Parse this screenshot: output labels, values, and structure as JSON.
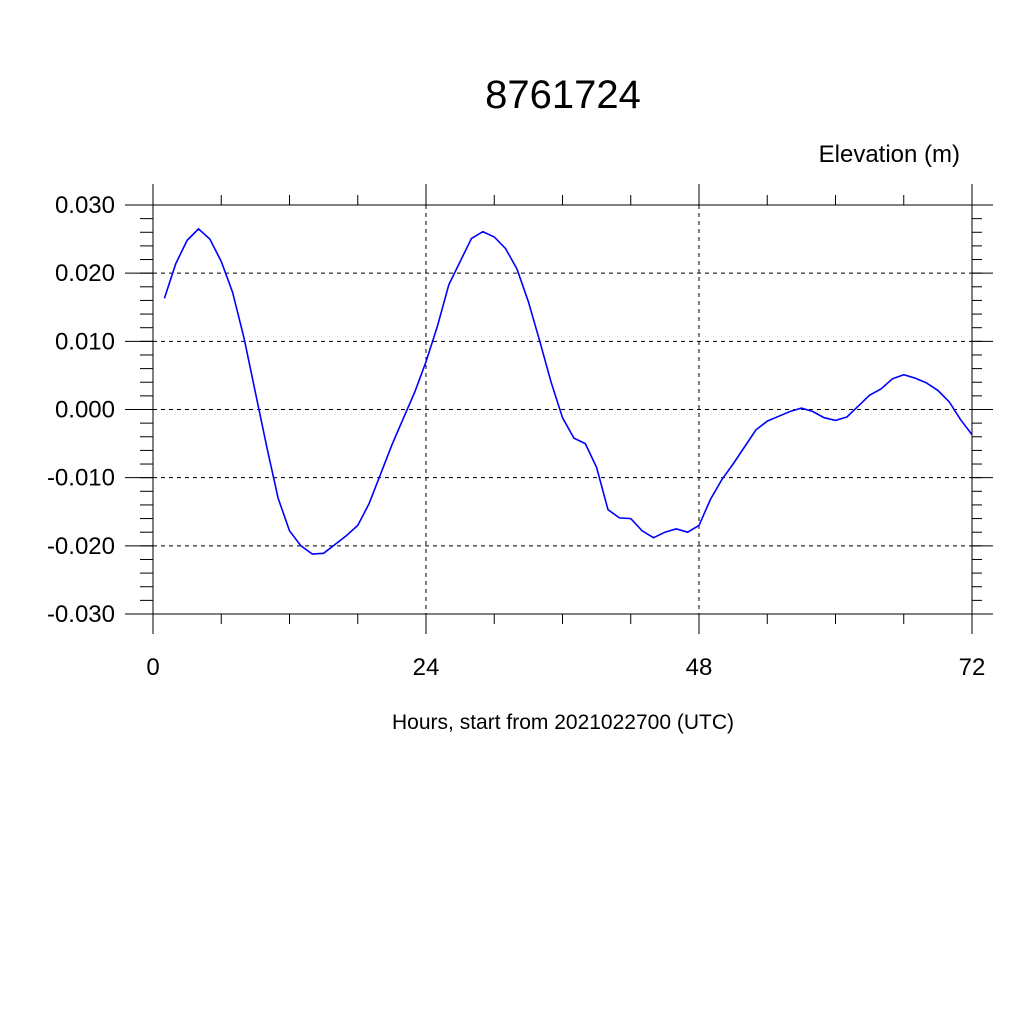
{
  "chart_data": {
    "type": "line",
    "title": "8761724",
    "ylabel": "Elevation (m)",
    "xlabel": "Hours, start from 2021022700 (UTC)",
    "xlim": [
      0,
      72
    ],
    "ylim": [
      -0.03,
      0.03
    ],
    "x_ticks": [
      "0",
      "24",
      "48",
      "72"
    ],
    "x_tick_values": [
      0,
      24,
      48,
      72
    ],
    "y_ticks": [
      "0.030",
      "0.020",
      "0.010",
      "0.000",
      "-0.010",
      "-0.020",
      "-0.030"
    ],
    "y_tick_values": [
      0.03,
      0.02,
      0.01,
      0.0,
      -0.01,
      -0.02,
      -0.03
    ],
    "grid": true,
    "series_color": "#0000ff",
    "series": [
      {
        "x": [
          1,
          2,
          3,
          4,
          5,
          6,
          7,
          8,
          9,
          10,
          11,
          12,
          13,
          14,
          15,
          16,
          17,
          18,
          19,
          20,
          21,
          22,
          23,
          24,
          25,
          26,
          27,
          28,
          29,
          30,
          31,
          32,
          33,
          34,
          35,
          36,
          37,
          38,
          39,
          40,
          41,
          42,
          43,
          44,
          45,
          46,
          47,
          48,
          49,
          50,
          51,
          52,
          53,
          54,
          55,
          56,
          57,
          58,
          59,
          60,
          61,
          62,
          63,
          64,
          65,
          66,
          67,
          68,
          69,
          70,
          71,
          72
        ],
        "y": [
          0.0163,
          0.0214,
          0.0248,
          0.0265,
          0.025,
          0.0217,
          0.0172,
          0.0105,
          0.0025,
          -0.0055,
          -0.013,
          -0.0178,
          -0.02,
          -0.0212,
          -0.0211,
          -0.0198,
          -0.0185,
          -0.017,
          -0.0138,
          -0.0095,
          -0.0052,
          -0.0013,
          0.0025,
          0.007,
          0.0122,
          0.0183,
          0.0217,
          0.0251,
          0.0261,
          0.0253,
          0.0236,
          0.0206,
          0.0158,
          0.01,
          0.004,
          -0.0012,
          -0.0042,
          -0.005,
          -0.0085,
          -0.0147,
          -0.0159,
          -0.016,
          -0.0178,
          -0.0188,
          -0.018,
          -0.0175,
          -0.018,
          -0.017,
          -0.0132,
          -0.0103,
          -0.008,
          -0.0055,
          -0.003,
          -0.0017,
          -0.001,
          -0.0003,
          0.0002,
          -0.0003,
          -0.0012,
          -0.0016,
          -0.0011,
          0.0005,
          0.0021,
          0.003,
          0.0045,
          0.0051,
          0.0046,
          0.0039,
          0.0028,
          0.0011,
          -0.0015,
          -0.0037
        ]
      }
    ]
  }
}
